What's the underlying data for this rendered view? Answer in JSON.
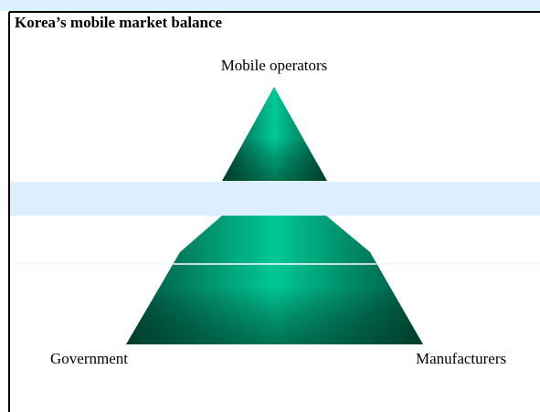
{
  "title": "Korea’s mobile market balance",
  "nodes": [
    {
      "label": "Mobile operators"
    },
    {
      "label": "Government"
    },
    {
      "label": "Manufacturers"
    }
  ]
}
